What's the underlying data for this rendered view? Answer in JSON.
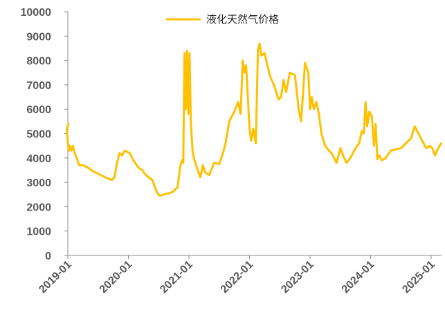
{
  "chart_data": {
    "type": "line",
    "title": "",
    "xlabel": "",
    "ylabel": "",
    "ylim": [
      0,
      10000
    ],
    "y_ticks": [
      0,
      1000,
      2000,
      3000,
      4000,
      5000,
      6000,
      7000,
      8000,
      9000,
      10000
    ],
    "x_tick_labels": [
      "2019-01",
      "2020-01",
      "2021-01",
      "2022-01",
      "2023-01",
      "2024-01",
      "2025-01"
    ],
    "grid": false,
    "legend_position": "top-center",
    "colors": {
      "series": "#FFC000",
      "axis": "#8c8c8c",
      "text": "#595959"
    },
    "series": [
      {
        "name": "液化天然气价格",
        "points": [
          [
            "2019-01",
            5400
          ],
          [
            "2019-01",
            5200
          ],
          [
            "2019-01",
            4600
          ],
          [
            "2019-01",
            4300
          ],
          [
            "2019-01",
            4500
          ],
          [
            "2019-02",
            4300
          ],
          [
            "2019-02",
            4500
          ],
          [
            "2019-02",
            4200
          ],
          [
            "2019-03",
            4000
          ],
          [
            "2019-03",
            3700
          ],
          [
            "2019-04",
            3700
          ],
          [
            "2019-05",
            3600
          ],
          [
            "2019-06",
            3450
          ],
          [
            "2019-07",
            3350
          ],
          [
            "2019-08",
            3250
          ],
          [
            "2019-09",
            3150
          ],
          [
            "2019-10",
            3100
          ],
          [
            "2019-10",
            3200
          ],
          [
            "2019-11",
            3800
          ],
          [
            "2019-11",
            4200
          ],
          [
            "2019-12",
            4100
          ],
          [
            "2019-12",
            4300
          ],
          [
            "2020-01",
            4250
          ],
          [
            "2020-01",
            4200
          ],
          [
            "2020-02",
            3900
          ],
          [
            "2020-03",
            3600
          ],
          [
            "2020-04",
            3500
          ],
          [
            "2020-04",
            3350
          ],
          [
            "2020-05",
            3200
          ],
          [
            "2020-06",
            3100
          ],
          [
            "2020-06",
            2800
          ],
          [
            "2020-07",
            2550
          ],
          [
            "2020-07",
            2450
          ],
          [
            "2020-08",
            2500
          ],
          [
            "2020-09",
            2550
          ],
          [
            "2020-10",
            2600
          ],
          [
            "2020-10",
            2700
          ],
          [
            "2020-11",
            2800
          ],
          [
            "2020-11",
            3600
          ],
          [
            "2020-12",
            3900
          ],
          [
            "2020-12",
            3800
          ],
          [
            "2020-12",
            8300
          ],
          [
            "2020-12",
            6000
          ],
          [
            "2021-01",
            8400
          ],
          [
            "2021-01",
            5800
          ],
          [
            "2021-01",
            8300
          ],
          [
            "2021-01",
            5500
          ],
          [
            "2021-02",
            4200
          ],
          [
            "2021-02",
            3800
          ],
          [
            "2021-03",
            3500
          ],
          [
            "2021-03",
            3200
          ],
          [
            "2021-04",
            3700
          ],
          [
            "2021-04",
            3400
          ],
          [
            "2021-05",
            3300
          ],
          [
            "2021-06",
            3800
          ],
          [
            "2021-07",
            3750
          ],
          [
            "2021-08",
            4200
          ],
          [
            "2021-08",
            4600
          ],
          [
            "2021-09",
            5500
          ],
          [
            "2021-10",
            5900
          ],
          [
            "2021-11",
            6300
          ],
          [
            "2021-11",
            5800
          ],
          [
            "2021-12",
            8000
          ],
          [
            "2021-12",
            7500
          ],
          [
            "2021-12",
            7800
          ],
          [
            "2022-01",
            6500
          ],
          [
            "2022-01",
            5200
          ],
          [
            "2022-01",
            4700
          ],
          [
            "2022-02",
            5200
          ],
          [
            "2022-02",
            4600
          ],
          [
            "2022-03",
            8400
          ],
          [
            "2022-03",
            8700
          ],
          [
            "2022-03",
            8200
          ],
          [
            "2022-04",
            8300
          ],
          [
            "2022-05",
            7400
          ],
          [
            "2022-06",
            6900
          ],
          [
            "2022-07",
            6400
          ],
          [
            "2022-07",
            6500
          ],
          [
            "2022-08",
            7200
          ],
          [
            "2022-08",
            6700
          ],
          [
            "2022-09",
            7500
          ],
          [
            "2022-10",
            7400
          ],
          [
            "2022-11",
            6000
          ],
          [
            "2022-11",
            5500
          ],
          [
            "2022-12",
            7900
          ],
          [
            "2023-01",
            7500
          ],
          [
            "2023-01",
            6000
          ],
          [
            "2023-01",
            6500
          ],
          [
            "2023-02",
            6000
          ],
          [
            "2023-02",
            6300
          ],
          [
            "2023-03",
            5800
          ],
          [
            "2023-03",
            5000
          ],
          [
            "2023-04",
            4500
          ],
          [
            "2023-05",
            4300
          ],
          [
            "2023-05",
            4200
          ],
          [
            "2023-06",
            4000
          ],
          [
            "2023-06",
            3800
          ],
          [
            "2023-07",
            4400
          ],
          [
            "2023-08",
            4000
          ],
          [
            "2023-08",
            3800
          ],
          [
            "2023-09",
            4000
          ],
          [
            "2023-10",
            4400
          ],
          [
            "2023-11",
            4600
          ],
          [
            "2023-11",
            5100
          ],
          [
            "2023-12",
            5000
          ],
          [
            "2023-12",
            6300
          ],
          [
            "2023-12",
            5300
          ],
          [
            "2024-01",
            5900
          ],
          [
            "2024-01",
            5700
          ],
          [
            "2024-02",
            4500
          ],
          [
            "2024-02",
            5400
          ],
          [
            "2024-02",
            3950
          ],
          [
            "2024-03",
            4100
          ],
          [
            "2024-03",
            3900
          ],
          [
            "2024-04",
            4000
          ],
          [
            "2024-05",
            4300
          ],
          [
            "2024-06",
            4350
          ],
          [
            "2024-07",
            4400
          ],
          [
            "2024-08",
            4600
          ],
          [
            "2024-09",
            4800
          ],
          [
            "2024-10",
            5300
          ],
          [
            "2024-10",
            5100
          ],
          [
            "2024-11",
            4800
          ],
          [
            "2024-12",
            4400
          ],
          [
            "2025-01",
            4500
          ],
          [
            "2025-01",
            4400
          ],
          [
            "2025-02",
            4100
          ],
          [
            "2025-02",
            4350
          ],
          [
            "2025-03",
            4600
          ]
        ]
      }
    ]
  }
}
